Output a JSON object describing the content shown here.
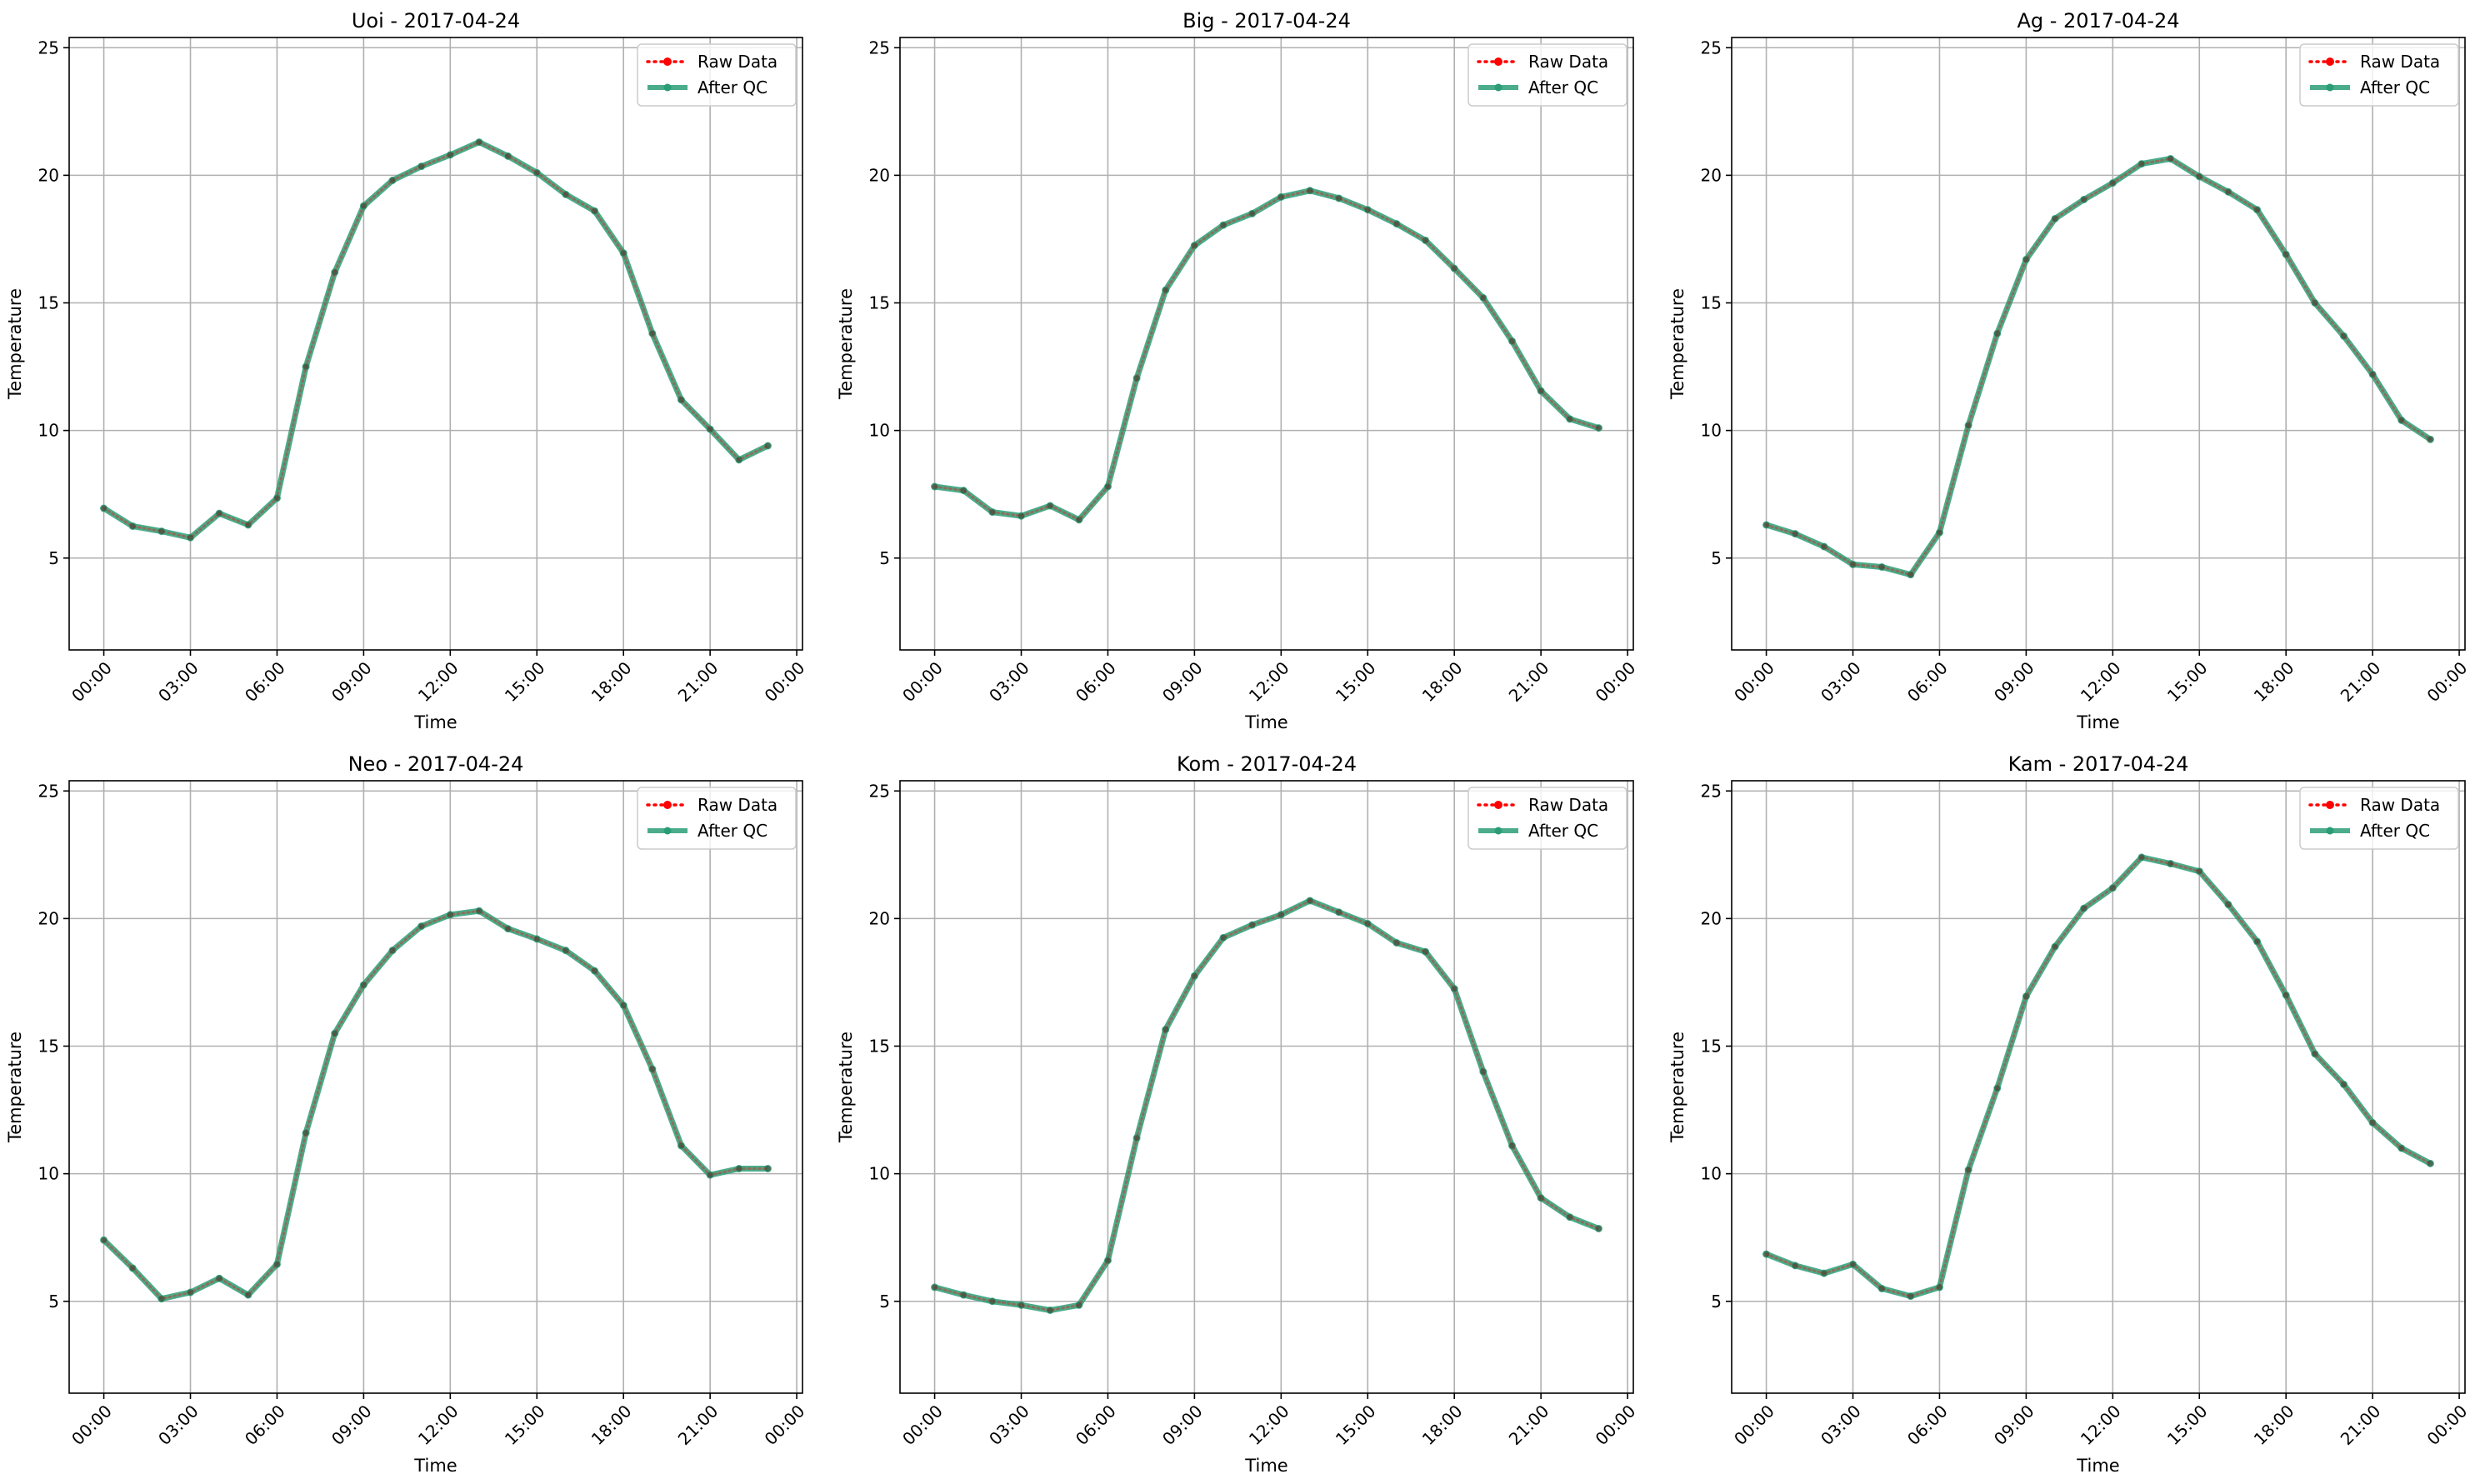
{
  "chart_data": [
    {
      "type": "line",
      "title": "Uoi - 2017-04-24",
      "xlabel": "Time",
      "ylabel": "Temperature",
      "x": [
        "00:00",
        "01:00",
        "02:00",
        "03:00",
        "04:00",
        "05:00",
        "06:00",
        "07:00",
        "08:00",
        "09:00",
        "10:00",
        "11:00",
        "12:00",
        "13:00",
        "14:00",
        "15:00",
        "16:00",
        "17:00",
        "18:00",
        "19:00",
        "20:00",
        "21:00",
        "22:00",
        "23:00"
      ],
      "xticks": [
        "00:00",
        "03:00",
        "06:00",
        "09:00",
        "12:00",
        "15:00",
        "18:00",
        "21:00",
        "00:00"
      ],
      "yticks": [
        5,
        10,
        15,
        20,
        25
      ],
      "ylim": [
        1.4,
        25.4
      ],
      "xlim_hours": [
        -1.2,
        24.2
      ],
      "grid": true,
      "legend_position": "upper right",
      "series": [
        {
          "name": "Raw Data",
          "color": "#ff0000",
          "style": "dotted",
          "values": [
            6.95,
            6.25,
            6.05,
            5.8,
            6.75,
            6.3,
            7.35,
            12.5,
            16.2,
            18.8,
            19.8,
            20.35,
            20.8,
            21.3,
            20.75,
            20.1,
            19.25,
            18.6,
            16.95,
            13.8,
            11.2,
            10.05,
            8.85,
            9.4
          ]
        },
        {
          "name": "After QC",
          "color": "#2a9d77",
          "style": "solid",
          "values": [
            6.95,
            6.25,
            6.05,
            5.8,
            6.75,
            6.3,
            7.35,
            12.5,
            16.2,
            18.8,
            19.8,
            20.35,
            20.8,
            21.3,
            20.75,
            20.1,
            19.25,
            18.6,
            16.95,
            13.8,
            11.2,
            10.05,
            8.85,
            9.4
          ]
        }
      ]
    },
    {
      "type": "line",
      "title": "Big - 2017-04-24",
      "xlabel": "Time",
      "ylabel": "Temperature",
      "x": [
        "00:00",
        "01:00",
        "02:00",
        "03:00",
        "04:00",
        "05:00",
        "06:00",
        "07:00",
        "08:00",
        "09:00",
        "10:00",
        "11:00",
        "12:00",
        "13:00",
        "14:00",
        "15:00",
        "16:00",
        "17:00",
        "18:00",
        "19:00",
        "20:00",
        "21:00",
        "22:00",
        "23:00"
      ],
      "xticks": [
        "00:00",
        "03:00",
        "06:00",
        "09:00",
        "12:00",
        "15:00",
        "18:00",
        "21:00",
        "00:00"
      ],
      "yticks": [
        5,
        10,
        15,
        20,
        25
      ],
      "ylim": [
        1.4,
        25.4
      ],
      "xlim_hours": [
        -1.2,
        24.2
      ],
      "grid": true,
      "legend_position": "upper right",
      "series": [
        {
          "name": "Raw Data",
          "color": "#ff0000",
          "style": "dotted",
          "values": [
            7.8,
            7.65,
            6.8,
            6.65,
            7.05,
            6.5,
            7.8,
            12.05,
            15.5,
            17.25,
            18.05,
            18.5,
            19.15,
            19.4,
            19.1,
            18.65,
            18.1,
            17.45,
            16.35,
            15.2,
            13.5,
            11.55,
            10.45,
            10.1
          ]
        },
        {
          "name": "After QC",
          "color": "#2a9d77",
          "style": "solid",
          "values": [
            7.8,
            7.65,
            6.8,
            6.65,
            7.05,
            6.5,
            7.8,
            12.05,
            15.5,
            17.25,
            18.05,
            18.5,
            19.15,
            19.4,
            19.1,
            18.65,
            18.1,
            17.45,
            16.35,
            15.2,
            13.5,
            11.55,
            10.45,
            10.1
          ]
        }
      ]
    },
    {
      "type": "line",
      "title": "Ag - 2017-04-24",
      "xlabel": "Time",
      "ylabel": "Temperature",
      "x": [
        "00:00",
        "01:00",
        "02:00",
        "03:00",
        "04:00",
        "05:00",
        "06:00",
        "07:00",
        "08:00",
        "09:00",
        "10:00",
        "11:00",
        "12:00",
        "13:00",
        "14:00",
        "15:00",
        "16:00",
        "17:00",
        "18:00",
        "19:00",
        "20:00",
        "21:00",
        "22:00",
        "23:00"
      ],
      "xticks": [
        "00:00",
        "03:00",
        "06:00",
        "09:00",
        "12:00",
        "15:00",
        "18:00",
        "21:00",
        "00:00"
      ],
      "yticks": [
        5,
        10,
        15,
        20,
        25
      ],
      "ylim": [
        1.4,
        25.4
      ],
      "xlim_hours": [
        -1.2,
        24.2
      ],
      "grid": true,
      "legend_position": "upper right",
      "series": [
        {
          "name": "Raw Data",
          "color": "#ff0000",
          "style": "dotted",
          "values": [
            6.3,
            5.95,
            5.45,
            4.75,
            4.65,
            4.35,
            6.0,
            10.2,
            13.8,
            16.7,
            18.3,
            19.05,
            19.7,
            20.45,
            20.65,
            19.95,
            19.35,
            18.65,
            16.9,
            15.0,
            13.7,
            12.2,
            10.4,
            9.65
          ]
        },
        {
          "name": "After QC",
          "color": "#2a9d77",
          "style": "solid",
          "values": [
            6.3,
            5.95,
            5.45,
            4.75,
            4.65,
            4.35,
            6.0,
            10.2,
            13.8,
            16.7,
            18.3,
            19.05,
            19.7,
            20.45,
            20.65,
            19.95,
            19.35,
            18.65,
            16.9,
            15.0,
            13.7,
            12.2,
            10.4,
            9.65
          ]
        }
      ]
    },
    {
      "type": "line",
      "title": "Neo - 2017-04-24",
      "xlabel": "Time",
      "ylabel": "Temperature",
      "x": [
        "00:00",
        "01:00",
        "02:00",
        "03:00",
        "04:00",
        "05:00",
        "06:00",
        "07:00",
        "08:00",
        "09:00",
        "10:00",
        "11:00",
        "12:00",
        "13:00",
        "14:00",
        "15:00",
        "16:00",
        "17:00",
        "18:00",
        "19:00",
        "20:00",
        "21:00",
        "22:00",
        "23:00"
      ],
      "xticks": [
        "00:00",
        "03:00",
        "06:00",
        "09:00",
        "12:00",
        "15:00",
        "18:00",
        "21:00",
        "00:00"
      ],
      "yticks": [
        5,
        10,
        15,
        20,
        25
      ],
      "ylim": [
        1.4,
        25.4
      ],
      "xlim_hours": [
        -1.2,
        24.2
      ],
      "grid": true,
      "legend_position": "upper right",
      "series": [
        {
          "name": "Raw Data",
          "color": "#ff0000",
          "style": "dotted",
          "values": [
            7.4,
            6.3,
            5.1,
            5.35,
            5.9,
            5.25,
            6.45,
            11.6,
            15.5,
            17.4,
            18.75,
            19.7,
            20.15,
            20.3,
            19.6,
            19.2,
            18.75,
            17.95,
            16.6,
            14.1,
            11.1,
            9.95,
            10.2,
            10.2
          ]
        },
        {
          "name": "After QC",
          "color": "#2a9d77",
          "style": "solid",
          "values": [
            7.4,
            6.3,
            5.1,
            5.35,
            5.9,
            5.25,
            6.45,
            11.6,
            15.5,
            17.4,
            18.75,
            19.7,
            20.15,
            20.3,
            19.6,
            19.2,
            18.75,
            17.95,
            16.6,
            14.1,
            11.1,
            9.95,
            10.2,
            10.2
          ]
        }
      ]
    },
    {
      "type": "line",
      "title": "Kom - 2017-04-24",
      "xlabel": "Time",
      "ylabel": "Temperature",
      "x": [
        "00:00",
        "01:00",
        "02:00",
        "03:00",
        "04:00",
        "05:00",
        "06:00",
        "07:00",
        "08:00",
        "09:00",
        "10:00",
        "11:00",
        "12:00",
        "13:00",
        "14:00",
        "15:00",
        "16:00",
        "17:00",
        "18:00",
        "19:00",
        "20:00",
        "21:00",
        "22:00",
        "23:00"
      ],
      "xticks": [
        "00:00",
        "03:00",
        "06:00",
        "09:00",
        "12:00",
        "15:00",
        "18:00",
        "21:00",
        "00:00"
      ],
      "yticks": [
        5,
        10,
        15,
        20,
        25
      ],
      "ylim": [
        1.4,
        25.4
      ],
      "xlim_hours": [
        -1.2,
        24.2
      ],
      "grid": true,
      "legend_position": "upper right",
      "series": [
        {
          "name": "Raw Data",
          "color": "#ff0000",
          "style": "dotted",
          "values": [
            5.55,
            5.25,
            5.0,
            4.85,
            4.65,
            4.85,
            6.6,
            11.4,
            15.65,
            17.75,
            19.25,
            19.75,
            20.15,
            20.7,
            20.25,
            19.8,
            19.05,
            18.7,
            17.25,
            14.0,
            11.1,
            9.05,
            8.3,
            7.85
          ]
        },
        {
          "name": "After QC",
          "color": "#2a9d77",
          "style": "solid",
          "values": [
            5.55,
            5.25,
            5.0,
            4.85,
            4.65,
            4.85,
            6.6,
            11.4,
            15.65,
            17.75,
            19.25,
            19.75,
            20.15,
            20.7,
            20.25,
            19.8,
            19.05,
            18.7,
            17.25,
            14.0,
            11.1,
            9.05,
            8.3,
            7.85
          ]
        }
      ]
    },
    {
      "type": "line",
      "title": "Kam - 2017-04-24",
      "xlabel": "Time",
      "ylabel": "Temperature",
      "x": [
        "00:00",
        "01:00",
        "02:00",
        "03:00",
        "04:00",
        "05:00",
        "06:00",
        "07:00",
        "08:00",
        "09:00",
        "10:00",
        "11:00",
        "12:00",
        "13:00",
        "14:00",
        "15:00",
        "16:00",
        "17:00",
        "18:00",
        "19:00",
        "20:00",
        "21:00",
        "22:00",
        "23:00"
      ],
      "xticks": [
        "00:00",
        "03:00",
        "06:00",
        "09:00",
        "12:00",
        "15:00",
        "18:00",
        "21:00",
        "00:00"
      ],
      "yticks": [
        5,
        10,
        15,
        20,
        25
      ],
      "ylim": [
        1.4,
        25.4
      ],
      "xlim_hours": [
        -1.2,
        24.2
      ],
      "grid": true,
      "legend_position": "upper right",
      "series": [
        {
          "name": "Raw Data",
          "color": "#ff0000",
          "style": "dotted",
          "values": [
            6.85,
            6.4,
            6.1,
            6.45,
            5.5,
            5.2,
            5.55,
            10.15,
            13.35,
            16.95,
            18.9,
            20.4,
            21.2,
            22.4,
            22.15,
            21.85,
            20.55,
            19.1,
            17.0,
            14.7,
            13.5,
            12.0,
            11.0,
            10.4
          ]
        },
        {
          "name": "After QC",
          "color": "#2a9d77",
          "style": "solid",
          "values": [
            6.85,
            6.4,
            6.1,
            6.45,
            5.5,
            5.2,
            5.55,
            10.15,
            13.35,
            16.95,
            18.9,
            20.4,
            21.2,
            22.4,
            22.15,
            21.85,
            20.55,
            19.1,
            17.0,
            14.7,
            13.5,
            12.0,
            11.0,
            10.4
          ]
        }
      ]
    }
  ]
}
